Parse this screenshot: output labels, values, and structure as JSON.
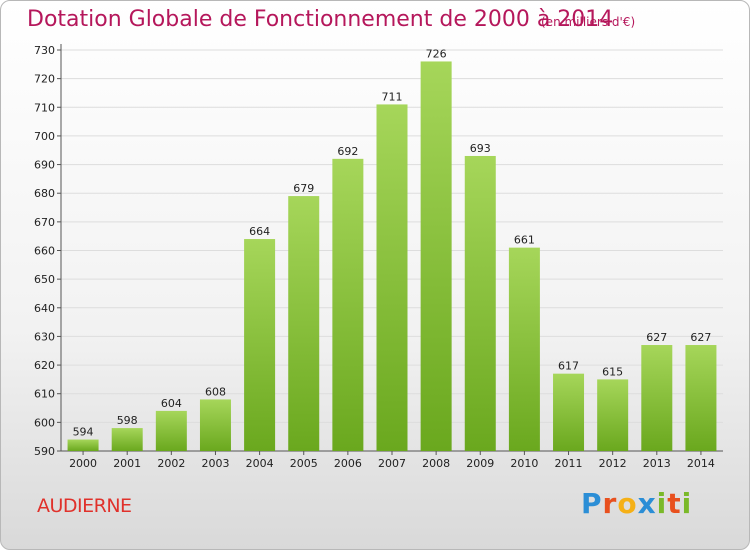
{
  "title": "Dotation Globale de Fonctionnement de 2000 à 2014",
  "subtitle": "(en milliers d'€)",
  "commune": "AUDIERNE",
  "logo": {
    "text": "Proxiti",
    "letters": [
      {
        "ch": "P",
        "color": "#2b8ed6"
      },
      {
        "ch": "r",
        "color": "#e8501e"
      },
      {
        "ch": "o",
        "color": "#f5b016"
      },
      {
        "ch": "x",
        "color": "#2b8ed6"
      },
      {
        "ch": "i",
        "color": "#7ab929"
      },
      {
        "ch": "t",
        "color": "#e8501e"
      },
      {
        "ch": "i",
        "color": "#7ab929"
      }
    ]
  },
  "colors": {
    "bar_light": "#a6d65a",
    "bar_dark": "#6aa81e",
    "title": "#b5175b",
    "grid": "#dddddd"
  },
  "chart_data": {
    "type": "bar",
    "categories": [
      "2000",
      "2001",
      "2002",
      "2003",
      "2004",
      "2005",
      "2006",
      "2007",
      "2008",
      "2009",
      "2010",
      "2011",
      "2012",
      "2013",
      "2014"
    ],
    "values": [
      594,
      598,
      604,
      608,
      664,
      679,
      692,
      711,
      726,
      693,
      661,
      617,
      615,
      627,
      627
    ],
    "yticks": [
      590,
      600,
      610,
      620,
      630,
      640,
      650,
      660,
      670,
      680,
      690,
      700,
      710,
      720,
      730
    ],
    "ylim": [
      590,
      730
    ],
    "grid": true
  }
}
